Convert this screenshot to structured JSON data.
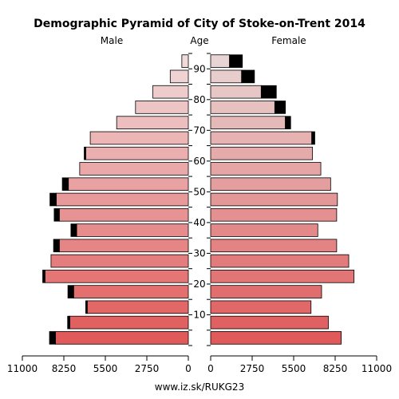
{
  "chart_data": {
    "type": "bar",
    "orientation": "horizontal-population-pyramid",
    "title": "Demographic Pyramid of City of Stoke-on-Trent 2014",
    "left_label": "Male",
    "center_label": "Age",
    "right_label": "Female",
    "age_groups": [
      "0-4",
      "5-9",
      "10-14",
      "15-19",
      "20-24",
      "25-29",
      "30-34",
      "35-39",
      "40-44",
      "45-49",
      "50-54",
      "55-59",
      "60-64",
      "65-69",
      "70-74",
      "75-79",
      "80-84",
      "85-89",
      "90+"
    ],
    "age_ticks": [
      "10",
      "20",
      "30",
      "40",
      "50",
      "60",
      "70",
      "80",
      "90"
    ],
    "x_ticks_left": [
      "11000",
      "8250",
      "5500",
      "2750",
      "0"
    ],
    "x_ticks_right": [
      "0",
      "2750",
      "5500",
      "8250",
      "11000"
    ],
    "xlim": [
      0,
      11000
    ],
    "series": [
      {
        "name": "Male",
        "values": [
          8800,
          7850,
          6700,
          7600,
          9500,
          9100,
          8550,
          7400,
          8550,
          8750,
          7950,
          7200,
          6800,
          6500,
          4750,
          3500,
          2350,
          1200,
          430
        ],
        "extra": [
          400,
          150,
          100,
          380,
          150,
          0,
          380,
          380,
          340,
          420,
          400,
          0,
          100,
          0,
          0,
          0,
          0,
          0,
          0
        ]
      },
      {
        "name": "Female",
        "values": [
          8650,
          7800,
          6650,
          7350,
          9500,
          9150,
          8350,
          7100,
          8350,
          8400,
          7950,
          7300,
          6750,
          6700,
          4950,
          4250,
          3350,
          2050,
          1250
        ],
        "extra": [
          0,
          0,
          0,
          0,
          0,
          0,
          0,
          0,
          0,
          0,
          0,
          0,
          0,
          200,
          350,
          700,
          1000,
          850,
          850
        ]
      }
    ],
    "colors": {
      "male_young": "#e05a5a",
      "male_old": "#f0dada",
      "female_young": "#e05a5a",
      "female_old": "#e8d4d4",
      "extra": "#000000"
    },
    "grid": false
  },
  "footer": "www.iz.sk/RUKG23"
}
